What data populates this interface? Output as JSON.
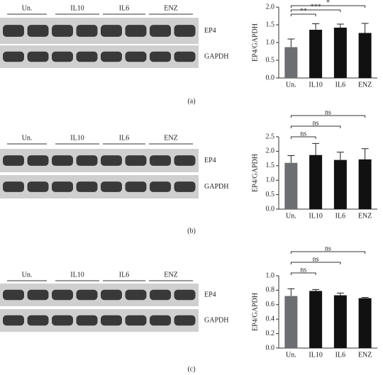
{
  "panels": [
    {
      "label": "(a)",
      "groups": [
        "Un.",
        "IL10",
        "IL6",
        "ENZ"
      ],
      "rows": [
        "EP4",
        "GAPDH"
      ]
    },
    {
      "label": "(b)",
      "groups": [
        "Un.",
        "IL10",
        "IL6",
        "ENZ"
      ],
      "rows": [
        "EP4",
        "GAPDH"
      ]
    },
    {
      "label": "(c)",
      "groups": [
        "Un.",
        "IL10",
        "IL6",
        "ENZ"
      ],
      "rows": [
        "EP4",
        "GAPDH"
      ]
    }
  ],
  "chart_data": [
    {
      "type": "bar",
      "y_label": "EP4/GAPDH",
      "categories": [
        "Un.",
        "IL10",
        "IL6",
        "ENZ"
      ],
      "values": [
        0.87,
        1.36,
        1.42,
        1.27
      ],
      "errors": [
        0.23,
        0.17,
        0.1,
        0.27
      ],
      "colors": [
        "#6d6e71",
        "#111111",
        "#111111",
        "#111111"
      ],
      "ylim": [
        0,
        2.0
      ],
      "yticks": [
        {
          "value": 0,
          "label": "0.0"
        },
        0.5,
        {
          "value": 1.0,
          "label": "1.0"
        },
        1.5,
        {
          "value": 2.0,
          "label": "2.0"
        }
      ],
      "annotations": [
        "**",
        "***",
        "*"
      ]
    },
    {
      "type": "bar",
      "y_label": "EP4/GAPDH",
      "categories": [
        "Un.",
        "IL10",
        "IL6",
        "ENZ"
      ],
      "values": [
        1.6,
        1.87,
        1.7,
        1.72
      ],
      "errors": [
        0.25,
        0.4,
        0.27,
        0.37
      ],
      "colors": [
        "#6d6e71",
        "#111111",
        "#111111",
        "#111111"
      ],
      "ylim": [
        0,
        2.5
      ],
      "yticks": [
        {
          "value": 0,
          "label": "0.0"
        },
        0.5,
        {
          "value": 1.0,
          "label": "1.0"
        },
        1.5,
        {
          "value": 2.0,
          "label": "2.0"
        },
        2.5
      ],
      "annotations": [
        "ns",
        "ns",
        "ns"
      ]
    },
    {
      "type": "bar",
      "y_label": "EP4/GAPDH",
      "categories": [
        "Un.",
        "IL10",
        "IL6",
        "ENZ"
      ],
      "values": [
        0.72,
        0.79,
        0.73,
        0.69
      ],
      "errors": [
        0.1,
        0.02,
        0.03,
        0.01
      ],
      "colors": [
        "#6d6e71",
        "#111111",
        "#111111",
        "#111111"
      ],
      "ylim": [
        0,
        1.0
      ],
      "yticks": [
        {
          "value": 0,
          "label": "0.0"
        },
        0.2,
        0.4,
        0.6,
        0.8,
        {
          "value": 1.0,
          "label": "1.0"
        }
      ],
      "annotations": [
        "ns",
        "ns",
        "ns"
      ]
    }
  ]
}
